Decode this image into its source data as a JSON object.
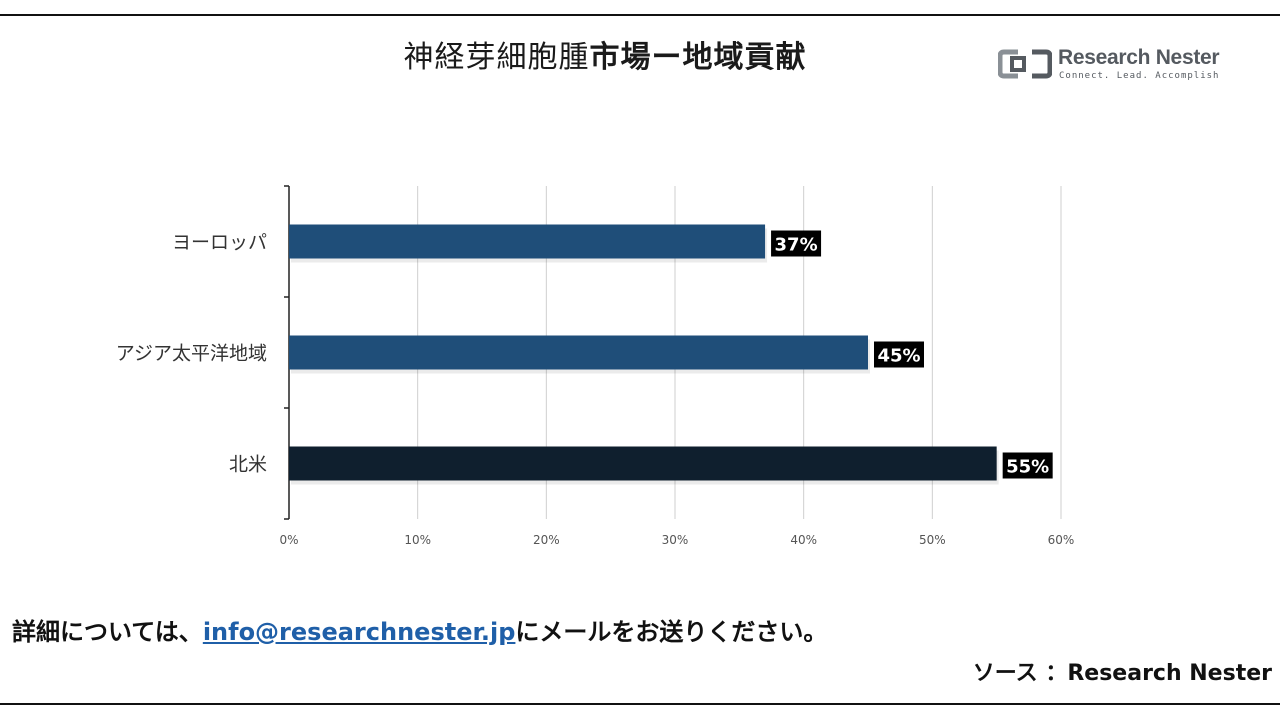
{
  "title_normal": "神経芽細胞腫",
  "title_bold": "市場ー地域貢献",
  "logo": {
    "name": "Research Nester",
    "tagline": "Connect. Lead. Accomplish",
    "icon": "research-nester-logo-icon"
  },
  "chart_data": {
    "type": "bar",
    "orientation": "horizontal",
    "categories": [
      "ヨーロッパ",
      "アジア太平洋地域",
      "北米"
    ],
    "values": [
      37,
      45,
      55
    ],
    "data_labels": [
      "37%",
      "45%",
      "55%"
    ],
    "bar_colors": [
      "#1f4e79",
      "#1f4e79",
      "#0f1f2e"
    ],
    "xlim": [
      0,
      60
    ],
    "xticks": [
      "0%",
      "10%",
      "20%",
      "30%",
      "40%",
      "50%",
      "60%"
    ],
    "grid": "vertical",
    "title": "",
    "xlabel": "",
    "ylabel": ""
  },
  "footer": {
    "note_prefix": "詳細については、",
    "email": "info@researchnester.jp",
    "note_suffix": "にメールをお送りください。",
    "source": "ソース ：Research Nester"
  },
  "colors": {
    "email_link": "#1f5fa8",
    "data_label_bg": "#000000",
    "data_label_text": "#ffffff"
  }
}
